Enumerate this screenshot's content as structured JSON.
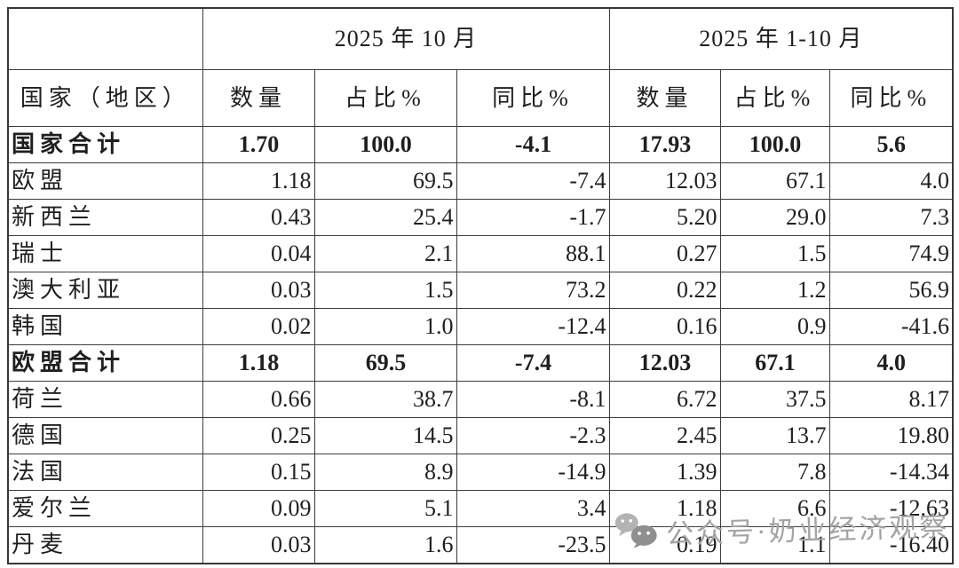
{
  "chart_data": {
    "type": "table",
    "period_headers": [
      "2025 年 10 月",
      "2025 年 1-10 月"
    ],
    "country_header": "国家（地区）",
    "metric_headers": [
      "数量",
      "占比%",
      "同比%",
      "数量",
      "占比%",
      "同比%"
    ],
    "rows": [
      {
        "label": "国家合计",
        "bold": true,
        "values": [
          "1.70",
          "100.0",
          "-4.1",
          "17.93",
          "100.0",
          "5.6"
        ]
      },
      {
        "label": "欧盟",
        "bold": false,
        "values": [
          "1.18",
          "69.5",
          "-7.4",
          "12.03",
          "67.1",
          "4.0"
        ]
      },
      {
        "label": "新西兰",
        "bold": false,
        "values": [
          "0.43",
          "25.4",
          "-1.7",
          "5.20",
          "29.0",
          "7.3"
        ]
      },
      {
        "label": "瑞士",
        "bold": false,
        "values": [
          "0.04",
          "2.1",
          "88.1",
          "0.27",
          "1.5",
          "74.9"
        ]
      },
      {
        "label": "澳大利亚",
        "bold": false,
        "values": [
          "0.03",
          "1.5",
          "73.2",
          "0.22",
          "1.2",
          "56.9"
        ]
      },
      {
        "label": "韩国",
        "bold": false,
        "values": [
          "0.02",
          "1.0",
          "-12.4",
          "0.16",
          "0.9",
          "-41.6"
        ]
      },
      {
        "label": "欧盟合计",
        "bold": true,
        "values": [
          "1.18",
          "69.5",
          "-7.4",
          "12.03",
          "67.1",
          "4.0"
        ]
      },
      {
        "label": "荷兰",
        "bold": false,
        "values": [
          "0.66",
          "38.7",
          "-8.1",
          "6.72",
          "37.5",
          "8.17"
        ]
      },
      {
        "label": "德国",
        "bold": false,
        "values": [
          "0.25",
          "14.5",
          "-2.3",
          "2.45",
          "13.7",
          "19.80"
        ]
      },
      {
        "label": "法国",
        "bold": false,
        "values": [
          "0.15",
          "8.9",
          "-14.9",
          "1.39",
          "7.8",
          "-14.34"
        ]
      },
      {
        "label": "爱尔兰",
        "bold": false,
        "values": [
          "0.09",
          "5.1",
          "3.4",
          "1.18",
          "6.6",
          "-12.63"
        ]
      },
      {
        "label": "丹麦",
        "bold": false,
        "values": [
          "0.03",
          "1.6",
          "-23.5",
          "0.19",
          "1.1",
          "-16.40"
        ]
      }
    ]
  },
  "watermark": {
    "icon": "wechat-icon",
    "text": "公众号·奶业经济观察"
  },
  "colors": {
    "border": "#3d3d3d",
    "text": "#1f1f1f",
    "watermark": "#a3a3a3",
    "background": "#ffffff"
  }
}
